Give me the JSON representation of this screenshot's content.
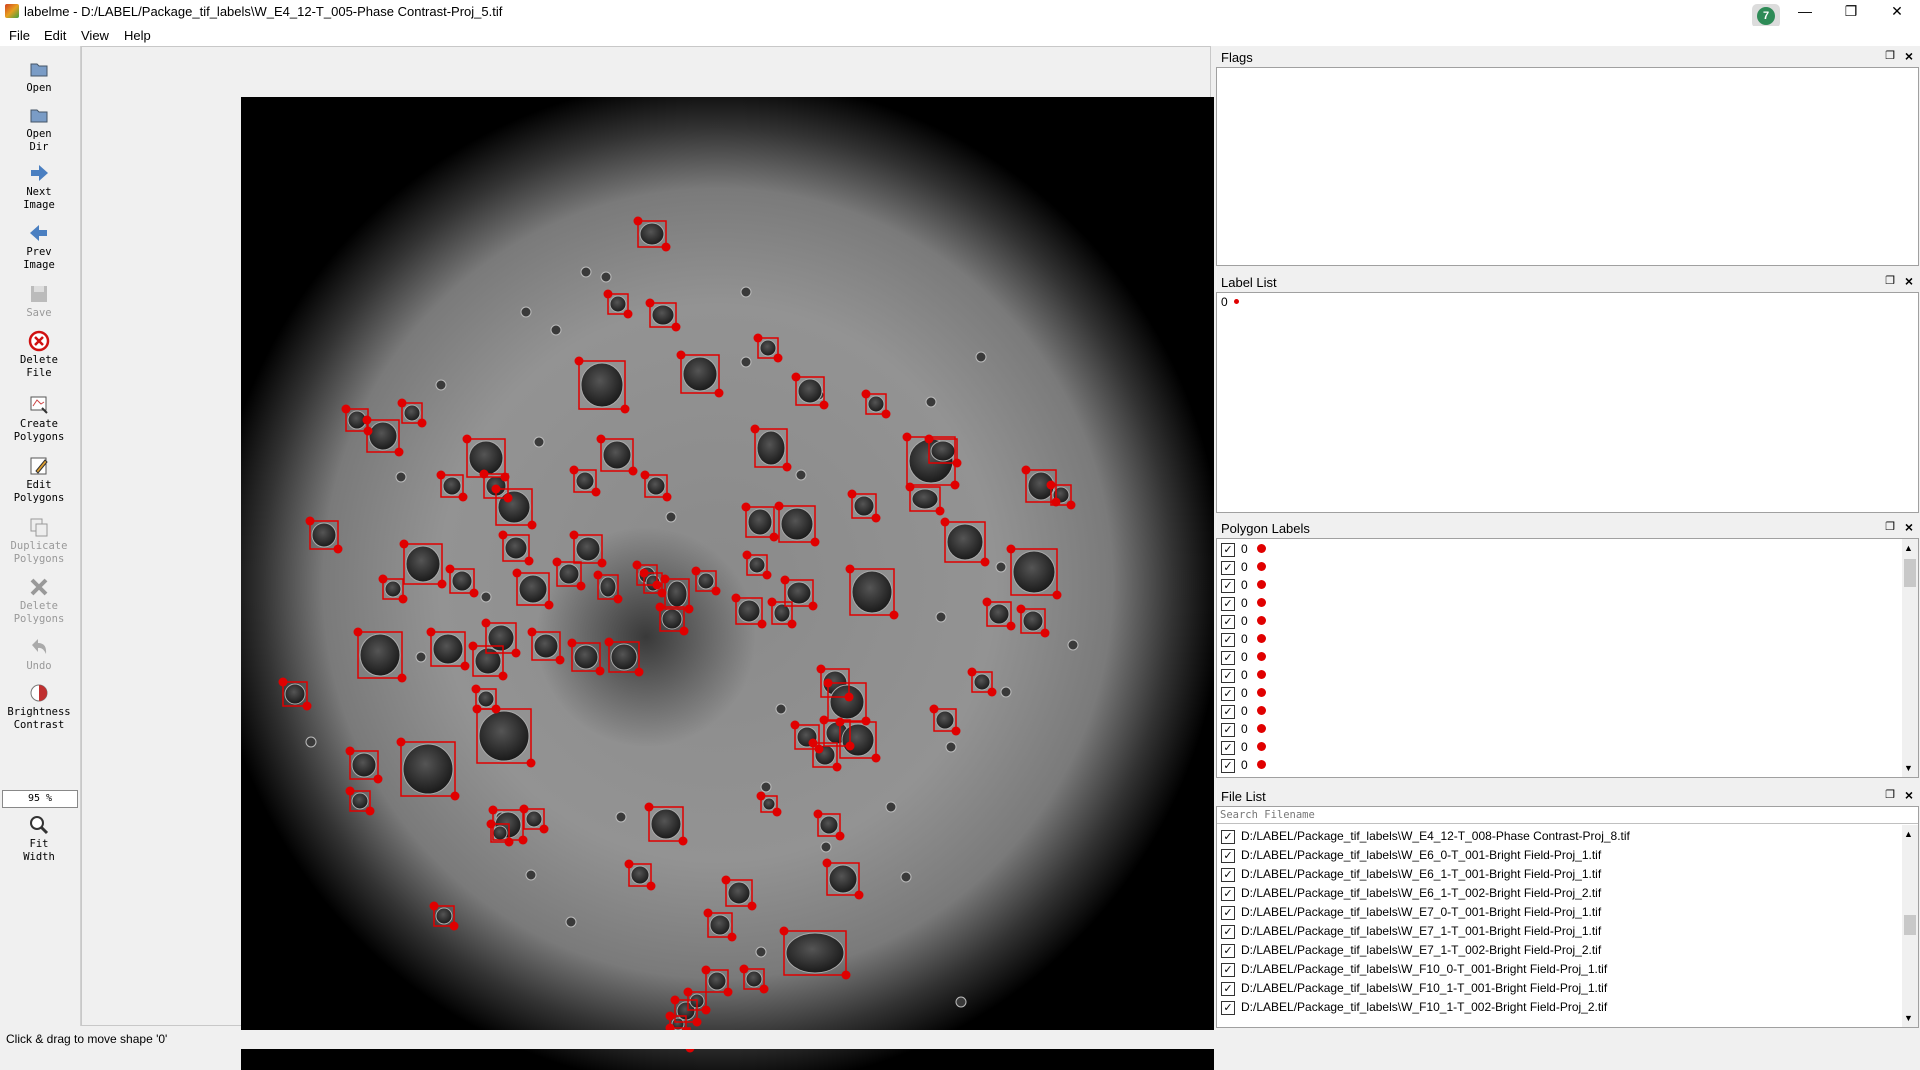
{
  "window": {
    "title": "labelme - D:/LABEL/Package_tif_labels\\W_E4_12-T_005-Phase Contrast-Proj_5.tif",
    "badge": "7",
    "minimize": "—",
    "restore": "❐",
    "close": "✕"
  },
  "menu": [
    "File",
    "Edit",
    "View",
    "Help"
  ],
  "toolbar": {
    "open": "Open",
    "open_dir_1": "Open",
    "open_dir_2": "Dir",
    "next_1": "Next",
    "next_2": "Image",
    "prev_1": "Prev",
    "prev_2": "Image",
    "save": "Save",
    "delete_file_1": "Delete",
    "delete_file_2": "File",
    "create_1": "Create",
    "create_2": "Polygons",
    "edit_1": "Edit",
    "edit_2": "Polygons",
    "duplicate_1": "Duplicate",
    "duplicate_2": "Polygons",
    "delete_poly_1": "Delete",
    "delete_poly_2": "Polygons",
    "undo": "Undo",
    "brightness_1": "Brightness",
    "brightness_2": "Contrast",
    "zoom": "95 %",
    "fit_1": "Fit",
    "fit_2": "Width"
  },
  "docks": {
    "flags": {
      "title": "Flags"
    },
    "label_list": {
      "title": "Label List",
      "items": [
        {
          "label": "0"
        }
      ]
    },
    "polygon_labels": {
      "title": "Polygon Labels",
      "items": [
        {
          "label": "0",
          "checked": true
        },
        {
          "label": "0",
          "checked": true
        },
        {
          "label": "0",
          "checked": true
        },
        {
          "label": "0",
          "checked": true
        },
        {
          "label": "0",
          "checked": true
        },
        {
          "label": "0",
          "checked": true
        },
        {
          "label": "0",
          "checked": true
        },
        {
          "label": "0",
          "checked": true
        },
        {
          "label": "0",
          "checked": true
        },
        {
          "label": "0",
          "checked": true
        },
        {
          "label": "0",
          "checked": true
        },
        {
          "label": "0",
          "checked": true
        },
        {
          "label": "0",
          "checked": true
        }
      ]
    },
    "file_list": {
      "title": "File List",
      "search_placeholder": "Search Filename",
      "files": [
        "D:/LABEL/Package_tif_labels\\W_E4_12-T_008-Phase Contrast-Proj_8.tif",
        "D:/LABEL/Package_tif_labels\\W_E6_0-T_001-Bright Field-Proj_1.tif",
        "D:/LABEL/Package_tif_labels\\W_E6_1-T_001-Bright Field-Proj_1.tif",
        "D:/LABEL/Package_tif_labels\\W_E6_1-T_002-Bright Field-Proj_2.tif",
        "D:/LABEL/Package_tif_labels\\W_E7_0-T_001-Bright Field-Proj_1.tif",
        "D:/LABEL/Package_tif_labels\\W_E7_1-T_001-Bright Field-Proj_1.tif",
        "D:/LABEL/Package_tif_labels\\W_E7_1-T_002-Bright Field-Proj_2.tif",
        "D:/LABEL/Package_tif_labels\\W_F10_0-T_001-Bright Field-Proj_1.tif",
        "D:/LABEL/Package_tif_labels\\W_F10_1-T_001-Bright Field-Proj_1.tif",
        "D:/LABEL/Package_tif_labels\\W_F10_1-T_002-Bright Field-Proj_2.tif"
      ]
    }
  },
  "status": "Click & drag to move shape '0'",
  "colors": {
    "annotation": "#e00000",
    "dock_border": "#a0a0a0"
  }
}
